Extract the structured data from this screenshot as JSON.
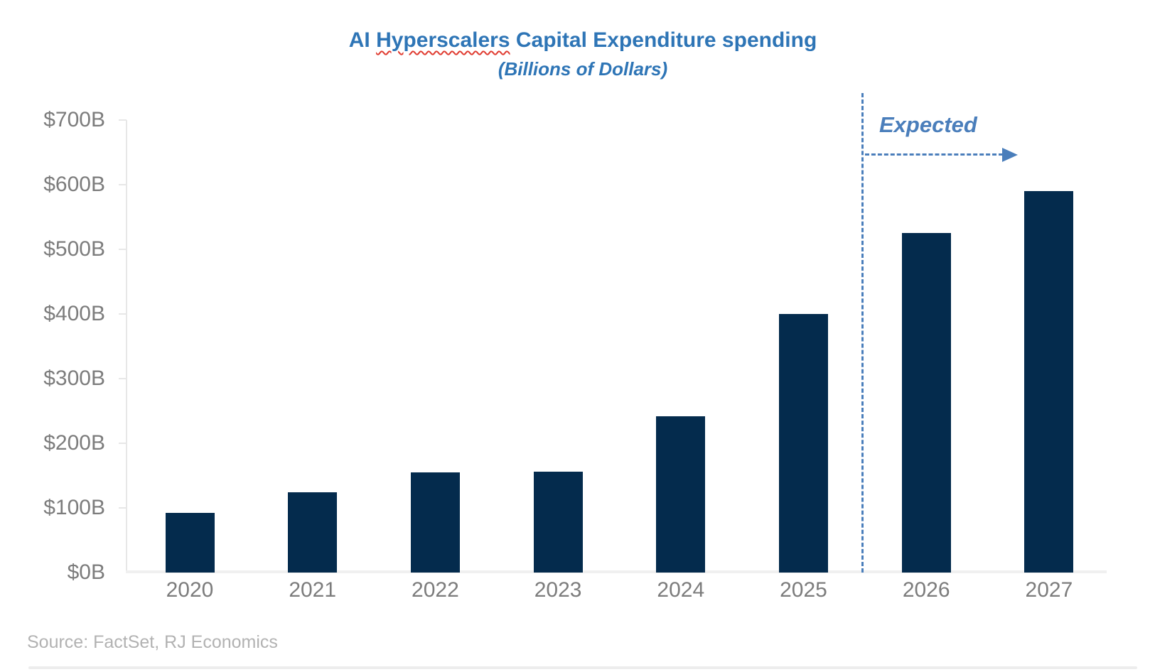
{
  "title": {
    "prefix": "AI ",
    "misspelled_word": "Hyperscalers",
    "suffix": " Capital Expenditure spending",
    "subtitle": "(Billions of Dollars)"
  },
  "annotations": {
    "expected_label": "Expected"
  },
  "source": "Source: FactSet, RJ Economics",
  "colors": {
    "bar": "#042B4D",
    "title_blue": "#2E75B6",
    "annotation_blue": "#4A7EBB",
    "axis_gray": "#E7E7E7",
    "label_gray": "#7C7C7C",
    "source_gray": "#B2B2B2",
    "spellcheck_red": "#E03C31"
  },
  "chart_data": {
    "type": "bar",
    "title": "AI Hyperscalers Capital Expenditure spending",
    "subtitle": "(Billions of Dollars)",
    "categories": [
      "2020",
      "2021",
      "2022",
      "2023",
      "2024",
      "2025",
      "2026",
      "2027"
    ],
    "values": [
      92,
      124,
      155,
      156,
      242,
      400,
      525,
      590
    ],
    "unit": "billions of USD",
    "ylim": [
      0,
      700
    ],
    "y_ticks": [
      "$0B",
      "$100B",
      "$200B",
      "$300B",
      "$400B",
      "$500B",
      "$600B",
      "$700B"
    ],
    "grid": false,
    "legend": false,
    "annotation": "Expected (dashed divider between 2025 actuals and 2026-2027 forecast)",
    "expected_categories": [
      "2026",
      "2027"
    ]
  }
}
